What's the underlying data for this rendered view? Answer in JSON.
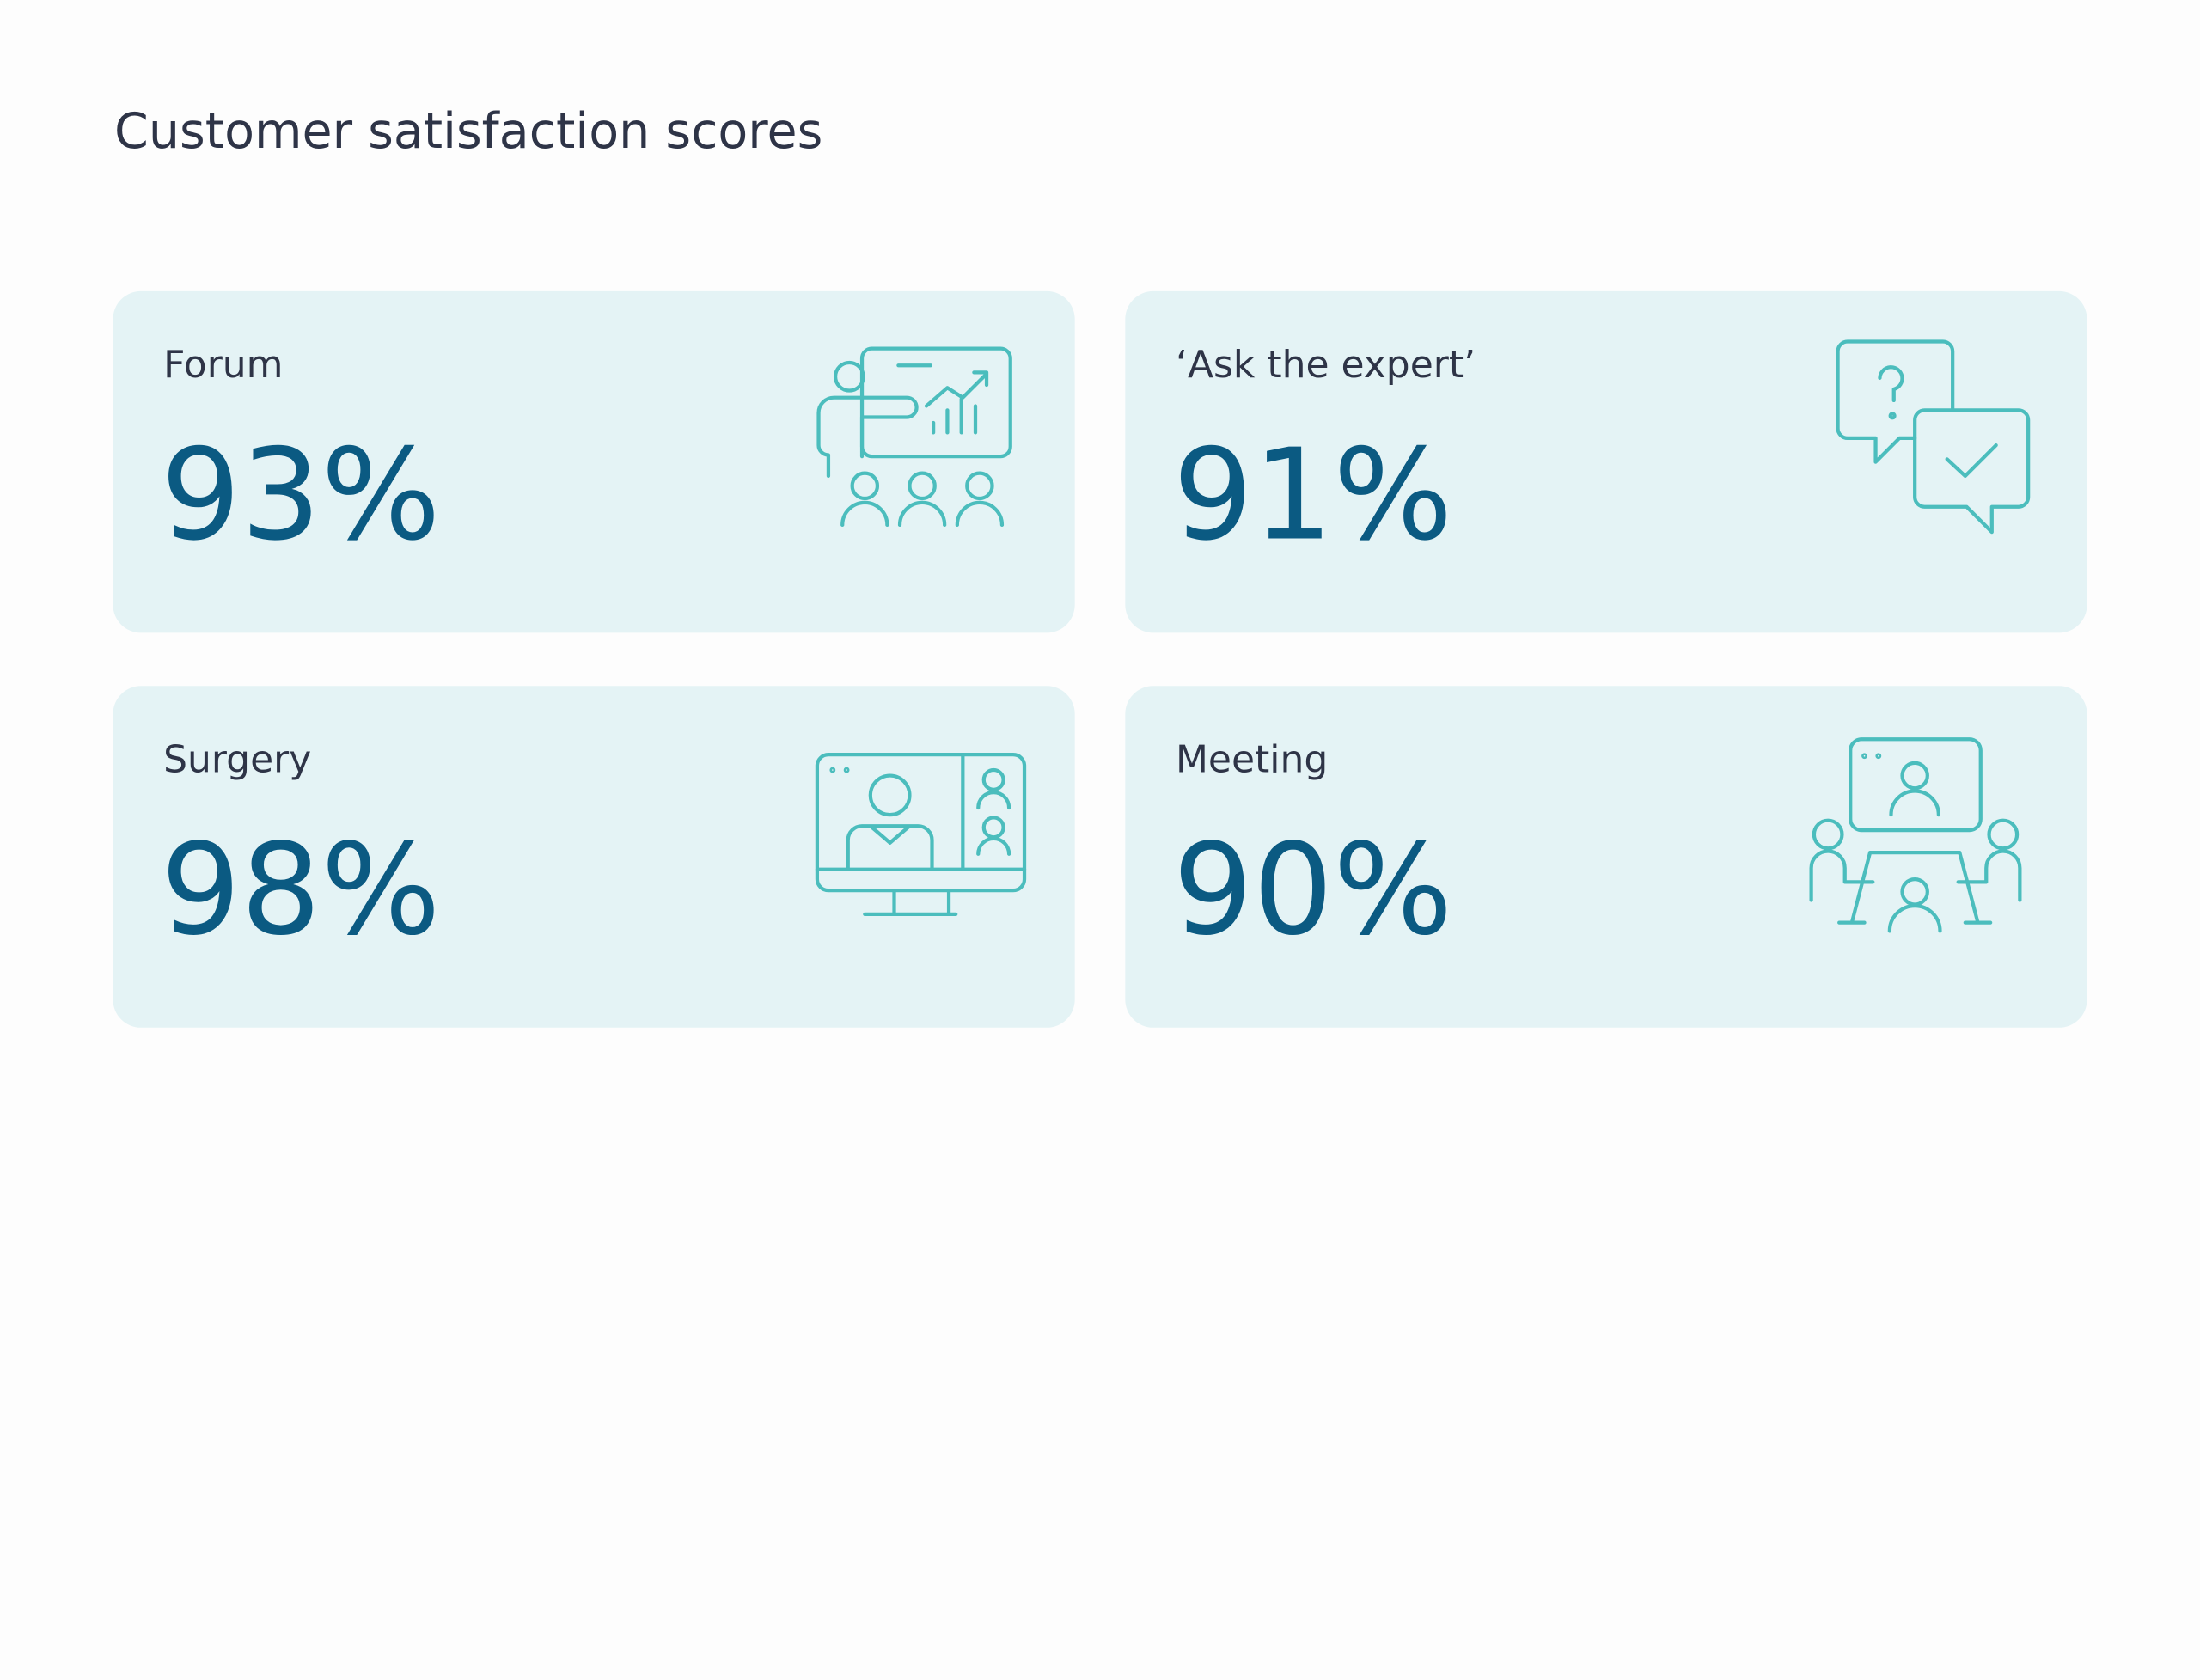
{
  "header": {
    "title": "Customer satisfaction scores"
  },
  "cards": [
    {
      "label": "Forum",
      "value": "93%"
    },
    {
      "label": "‘Ask the expert’",
      "value": "91%"
    },
    {
      "label": "Surgery",
      "value": "98%"
    },
    {
      "label": "Meeting",
      "value": "90%"
    }
  ]
}
